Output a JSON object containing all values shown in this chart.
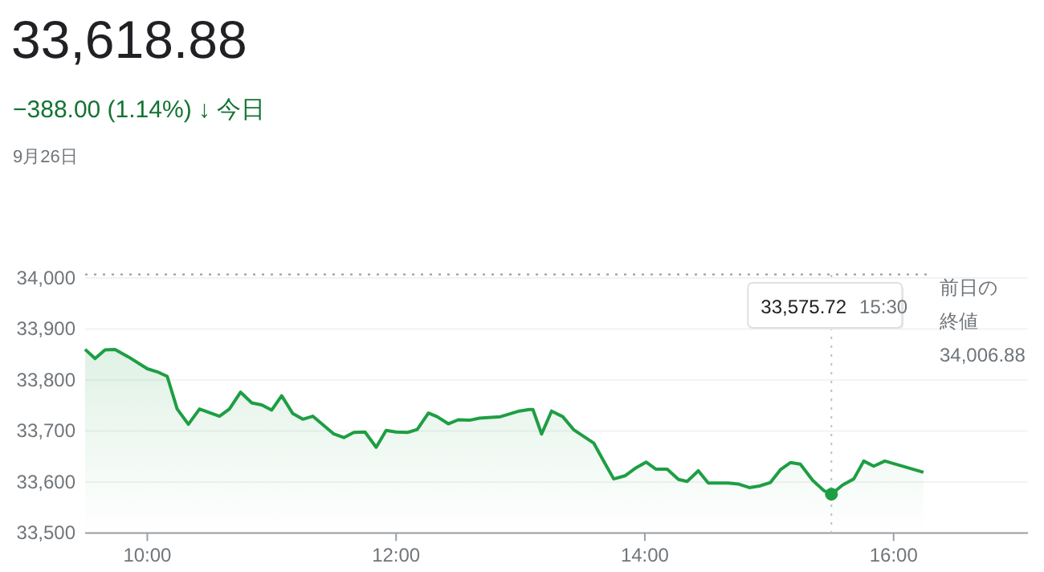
{
  "chart_data": {
    "type": "area",
    "title": "33,618.88",
    "subtitle": "−388.00 (1.14%) ↓ 今日",
    "annotations": [
      "9月26日"
    ],
    "x": [
      9.5,
      9.58,
      9.66,
      9.74,
      9.85,
      10.0,
      10.08,
      10.16,
      10.24,
      10.33,
      10.42,
      10.58,
      10.66,
      10.75,
      10.84,
      10.92,
      11.0,
      11.08,
      11.17,
      11.25,
      11.33,
      11.5,
      11.58,
      11.66,
      11.75,
      11.84,
      11.92,
      12.0,
      12.09,
      12.17,
      12.26,
      12.33,
      12.42,
      12.5,
      12.59,
      12.67,
      12.84,
      12.99,
      13.07,
      13.1,
      13.17,
      13.25,
      13.34,
      13.43,
      13.59,
      13.68,
      13.75,
      13.84,
      13.93,
      14.01,
      14.09,
      14.18,
      14.27,
      14.34,
      14.43,
      14.51,
      14.67,
      14.75,
      14.84,
      14.92,
      15.01,
      15.09,
      15.17,
      15.25,
      15.35,
      15.44,
      15.5,
      15.59,
      15.68,
      15.76,
      15.84,
      15.93,
      16.24
    ],
    "series": [
      {
        "color": "#1e9e44",
        "values": [
          33860,
          33842,
          33859,
          33860,
          33845,
          33822,
          33816,
          33807,
          33743,
          33713,
          33743,
          33729,
          33743,
          33776,
          33755,
          33751,
          33741,
          33769,
          33734,
          33723,
          33729,
          33694,
          33687,
          33697,
          33698,
          33668,
          33701,
          33698,
          33697,
          33703,
          33735,
          33728,
          33714,
          33722,
          33721,
          33725,
          33728,
          33739,
          33742,
          33742,
          33694,
          33739,
          33728,
          33702,
          33676,
          33636,
          33606,
          33612,
          33628,
          33639,
          33625,
          33625,
          33605,
          33601,
          33622,
          33598,
          33598,
          33596,
          33589,
          33592,
          33599,
          33624,
          33638,
          33635,
          33603,
          33583,
          33576,
          33594,
          33606,
          33641,
          33631,
          33641,
          33619
        ]
      }
    ],
    "xlim": [
      9.5,
      17.08
    ],
    "xticks": [
      {
        "value": 10,
        "label": "10:00"
      },
      {
        "value": 12,
        "label": "12:00"
      },
      {
        "value": 14,
        "label": "14:00"
      },
      {
        "value": 16,
        "label": "16:00"
      }
    ],
    "ylim": [
      33500,
      34000
    ],
    "yticks": [
      {
        "value": 33500,
        "label": "33,500"
      },
      {
        "value": 33600,
        "label": "33,600"
      },
      {
        "value": 33700,
        "label": "33,700"
      },
      {
        "value": 33800,
        "label": "33,800"
      },
      {
        "value": 33900,
        "label": "33,900"
      },
      {
        "value": 34000,
        "label": "34,000"
      }
    ],
    "ref_lines": [
      {
        "axis": "y",
        "value": 34006.88,
        "label": "前日の終値 34,006.88",
        "line_style": "dotted"
      },
      {
        "axis": "x",
        "value": 15.5,
        "label": "33,575.72 15:30",
        "line_style": "dotted"
      }
    ],
    "grid": "y",
    "marker": "none",
    "line_style": "solid"
  }
}
